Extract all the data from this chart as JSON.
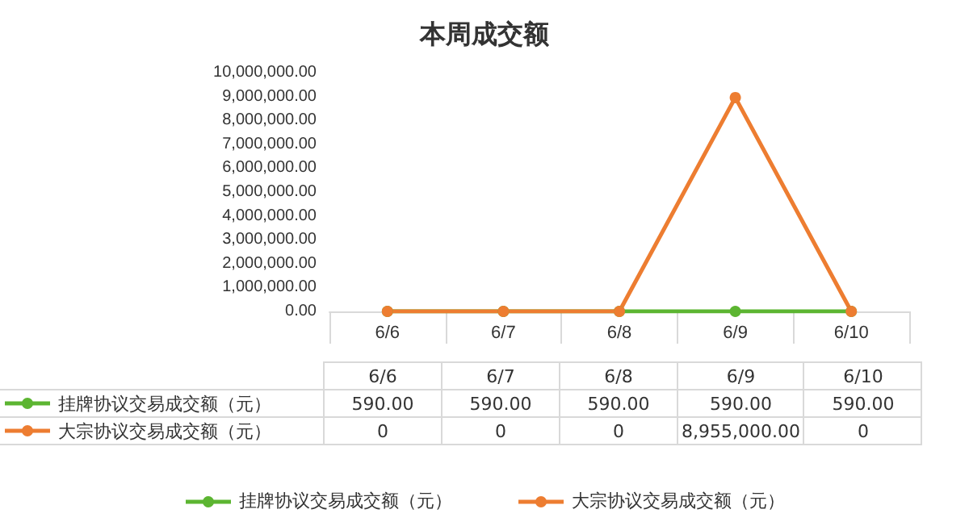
{
  "chart_data": {
    "type": "line",
    "title": "本周成交额",
    "categories": [
      "6/6",
      "6/7",
      "6/8",
      "6/9",
      "6/10"
    ],
    "series": [
      {
        "name": "挂牌协议交易成交额（元）",
        "color": "#5cb531",
        "values": [
          590,
          590,
          590,
          590,
          590
        ],
        "value_labels": [
          "590.00",
          "590.00",
          "590.00",
          "590.00",
          "590.00"
        ]
      },
      {
        "name": "大宗协议交易成交额（元）",
        "color": "#ed7d31",
        "values": [
          0,
          0,
          0,
          8955000,
          0
        ],
        "value_labels": [
          "0",
          "0",
          "0",
          "8,955,000.00",
          "0"
        ]
      }
    ],
    "ylim": [
      0,
      10000000
    ],
    "yticks": [
      {
        "value": 0,
        "label": "0.00"
      },
      {
        "value": 1000000,
        "label": "1,000,000.00"
      },
      {
        "value": 2000000,
        "label": "2,000,000.00"
      },
      {
        "value": 3000000,
        "label": "3,000,000.00"
      },
      {
        "value": 4000000,
        "label": "4,000,000.00"
      },
      {
        "value": 5000000,
        "label": "5,000,000.00"
      },
      {
        "value": 6000000,
        "label": "6,000,000.00"
      },
      {
        "value": 7000000,
        "label": "7,000,000.00"
      },
      {
        "value": 8000000,
        "label": "8,000,000.00"
      },
      {
        "value": 9000000,
        "label": "9,000,000.00"
      },
      {
        "value": 10000000,
        "label": "10,000,000.00"
      }
    ],
    "grid": false,
    "legend": "bottom",
    "marker": "circle",
    "line_style": "solid"
  }
}
